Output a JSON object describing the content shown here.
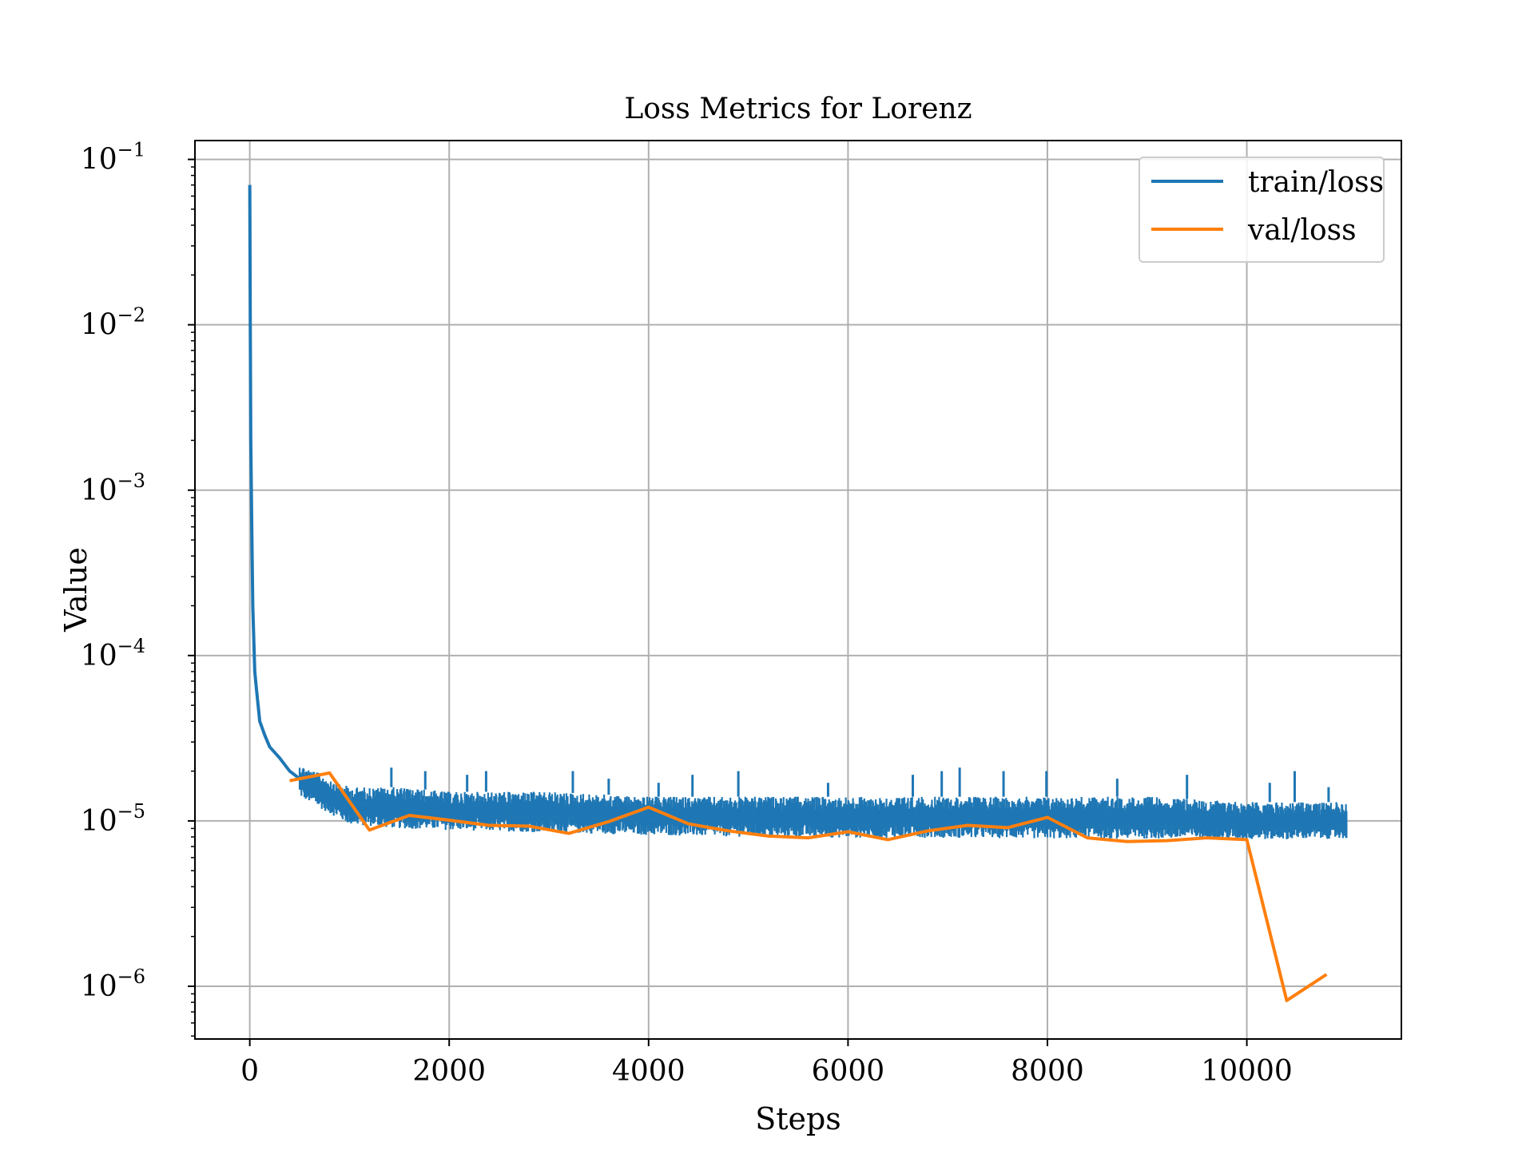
{
  "chart_data": {
    "type": "line",
    "title": "Loss Metrics for Lorenz",
    "xlabel": "Steps",
    "ylabel": "Value",
    "xlim": [
      -550,
      11550
    ],
    "ylim": [
      4.8e-07,
      0.13
    ],
    "yscale": "log",
    "grid": true,
    "legend_position": "top-right",
    "x_ticks": [
      0,
      2000,
      4000,
      6000,
      8000,
      10000
    ],
    "x_tick_labels": [
      "0",
      "2000",
      "4000",
      "6000",
      "8000",
      "10000"
    ],
    "y_ticks": [
      1e-06,
      1e-05,
      0.0001,
      0.001,
      0.01,
      0.1
    ],
    "y_tick_labels": [
      {
        "base": "10",
        "exp": "−6"
      },
      {
        "base": "10",
        "exp": "−5"
      },
      {
        "base": "10",
        "exp": "−4"
      },
      {
        "base": "10",
        "exp": "−3"
      },
      {
        "base": "10",
        "exp": "−2"
      },
      {
        "base": "10",
        "exp": "−1"
      }
    ],
    "series": [
      {
        "name": "train/loss",
        "color": "#1f77b4",
        "x": [
          0,
          5,
          10,
          20,
          30,
          50,
          70,
          100,
          150,
          200,
          300,
          400,
          500,
          600,
          700,
          800,
          1000,
          1200,
          1500,
          2000,
          3000,
          4000,
          5000,
          6000,
          7000,
          8000,
          9000,
          10000,
          11000
        ],
        "y": [
          0.07,
          0.01,
          0.002,
          0.0006,
          0.0002,
          8e-05,
          6e-05,
          4e-05,
          3.3e-05,
          2.8e-05,
          2.4e-05,
          2e-05,
          1.8e-05,
          1.7e-05,
          1.6e-05,
          1.5e-05,
          1.3e-05,
          1.25e-05,
          1.2e-05,
          1.1e-05,
          1.05e-05,
          1e-05,
          9.8e-06,
          9.5e-06,
          9.4e-06,
          9.3e-06,
          9.2e-06,
          9.1e-06,
          9e-06
        ],
        "noise_band": {
          "x": [
            500,
            1000,
            1500,
            2000,
            3000,
            4000,
            5000,
            6000,
            7000,
            8000,
            9000,
            10000,
            11000
          ],
          "low": [
            1.4e-05,
            9.5e-06,
            9e-06,
            8.8e-06,
            8.5e-06,
            8.2e-06,
            8e-06,
            7.9e-06,
            7.9e-06,
            7.8e-06,
            7.8e-06,
            7.7e-06,
            7.8e-06
          ],
          "high": [
            2.2e-05,
            1.6e-05,
            1.6e-05,
            1.5e-05,
            1.5e-05,
            1.4e-05,
            1.4e-05,
            1.4e-05,
            1.4e-05,
            1.4e-05,
            1.4e-05,
            1.3e-05,
            1.3e-05
          ]
        },
        "spikes": [
          {
            "x": 1420,
            "y": 2.1e-05
          },
          {
            "x": 1760,
            "y": 2e-05
          },
          {
            "x": 2180,
            "y": 1.9e-05
          },
          {
            "x": 2370,
            "y": 2e-05
          },
          {
            "x": 3240,
            "y": 2e-05
          },
          {
            "x": 3600,
            "y": 1.8e-05
          },
          {
            "x": 4100,
            "y": 1.7e-05
          },
          {
            "x": 4440,
            "y": 1.9e-05
          },
          {
            "x": 4900,
            "y": 2e-05
          },
          {
            "x": 5800,
            "y": 1.7e-05
          },
          {
            "x": 6650,
            "y": 1.9e-05
          },
          {
            "x": 6940,
            "y": 2e-05
          },
          {
            "x": 7120,
            "y": 2.1e-05
          },
          {
            "x": 7560,
            "y": 2e-05
          },
          {
            "x": 7990,
            "y": 2e-05
          },
          {
            "x": 8700,
            "y": 1.8e-05
          },
          {
            "x": 9400,
            "y": 1.9e-05
          },
          {
            "x": 10230,
            "y": 1.7e-05
          },
          {
            "x": 10480,
            "y": 2e-05
          },
          {
            "x": 10820,
            "y": 1.6e-05
          }
        ]
      },
      {
        "name": "val/loss",
        "color": "#ff7f0e",
        "x": [
          400,
          800,
          1200,
          1600,
          2000,
          2400,
          2800,
          3200,
          3600,
          4000,
          4400,
          4800,
          5200,
          5600,
          6000,
          6400,
          6800,
          7200,
          7600,
          8000,
          8400,
          8800,
          9200,
          9600,
          10000,
          10400,
          10800
        ],
        "y": [
          1.75e-05,
          1.95e-05,
          8.8e-06,
          1.08e-05,
          1.01e-05,
          9.4e-06,
          9.3e-06,
          8.4e-06,
          9.9e-06,
          1.21e-05,
          9.6e-06,
          8.7e-06,
          8.1e-06,
          7.9e-06,
          8.6e-06,
          7.7e-06,
          8.7e-06,
          9.4e-06,
          9.1e-06,
          1.05e-05,
          7.9e-06,
          7.5e-06,
          7.6e-06,
          7.9e-06,
          7.7e-06,
          8.2e-07,
          1.18e-06
        ]
      }
    ]
  }
}
